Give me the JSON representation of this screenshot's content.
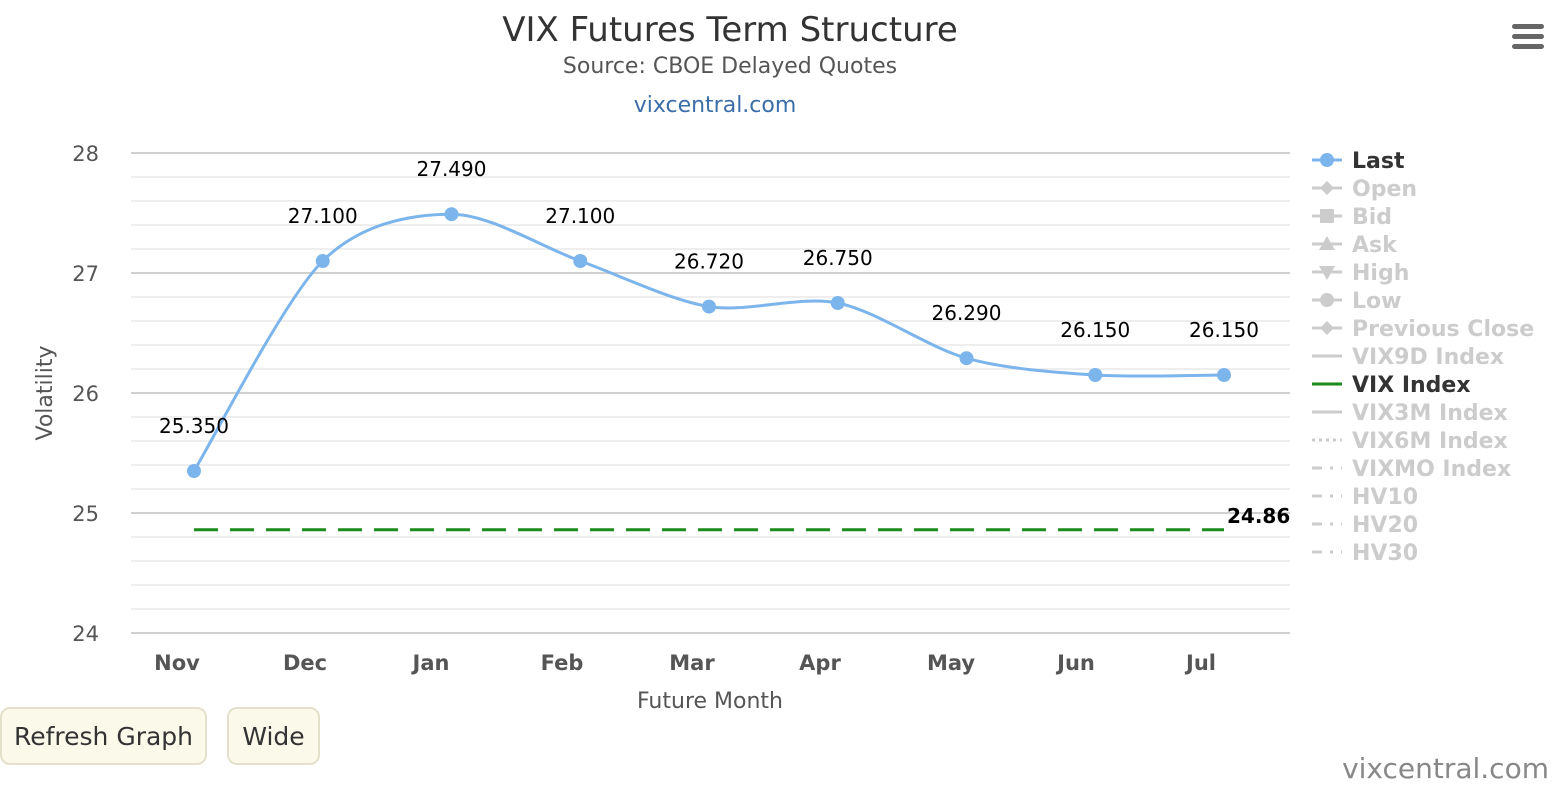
{
  "chart_data": {
    "type": "line",
    "title": "VIX Futures Term Structure",
    "subtitle": "Source: CBOE Delayed Quotes",
    "site_link": "vixcentral.com",
    "xlabel": "Future Month",
    "ylabel": "Volatility",
    "categories": [
      "Nov",
      "Dec",
      "Jan",
      "Feb",
      "Mar",
      "Apr",
      "May",
      "Jun",
      "Jul"
    ],
    "ylim": [
      24,
      28
    ],
    "yticks": [
      "24",
      "25",
      "26",
      "27",
      "28"
    ],
    "grid": true,
    "legend_position": "right",
    "series": [
      {
        "name": "Last",
        "color": "#7cb5ec",
        "values": [
          25.35,
          27.1,
          27.49,
          27.1,
          26.72,
          26.75,
          26.29,
          26.15,
          26.15
        ],
        "labels": [
          "25.350",
          "27.100",
          "27.490",
          "27.100",
          "26.720",
          "26.750",
          "26.290",
          "26.150",
          "26.150"
        ]
      },
      {
        "name": "VIX Index",
        "color": "#1a8a1a",
        "style": "dashed",
        "value": 24.86,
        "end_label": "24.86"
      }
    ],
    "legend": [
      {
        "label": "Last",
        "symbol": "circle",
        "active": true,
        "color": "#7cb5ec"
      },
      {
        "label": "Open",
        "symbol": "diamond",
        "active": false
      },
      {
        "label": "Bid",
        "symbol": "square",
        "active": false
      },
      {
        "label": "Ask",
        "symbol": "triangle",
        "active": false
      },
      {
        "label": "High",
        "symbol": "triangle-down",
        "active": false
      },
      {
        "label": "Low",
        "symbol": "circle",
        "active": false
      },
      {
        "label": "Previous Close",
        "symbol": "diamond",
        "active": false
      },
      {
        "label": "VIX9D Index",
        "symbol": "line",
        "active": false
      },
      {
        "label": "VIX Index",
        "symbol": "line",
        "active": true,
        "color": "#1a8a1a"
      },
      {
        "label": "VIX3M Index",
        "symbol": "line",
        "active": false
      },
      {
        "label": "VIX6M Index",
        "symbol": "dotted",
        "active": false
      },
      {
        "label": "VIXMO Index",
        "symbol": "dashdot",
        "active": false
      },
      {
        "label": "HV10",
        "symbol": "dashdot",
        "active": false
      },
      {
        "label": "HV20",
        "symbol": "dashdot",
        "active": false
      },
      {
        "label": "HV30",
        "symbol": "dashdot",
        "active": false
      }
    ]
  },
  "buttons": {
    "refresh": "Refresh Graph",
    "wide": "Wide"
  },
  "menu_icon": "hamburger-menu-icon",
  "watermark": "vixcentral.com"
}
